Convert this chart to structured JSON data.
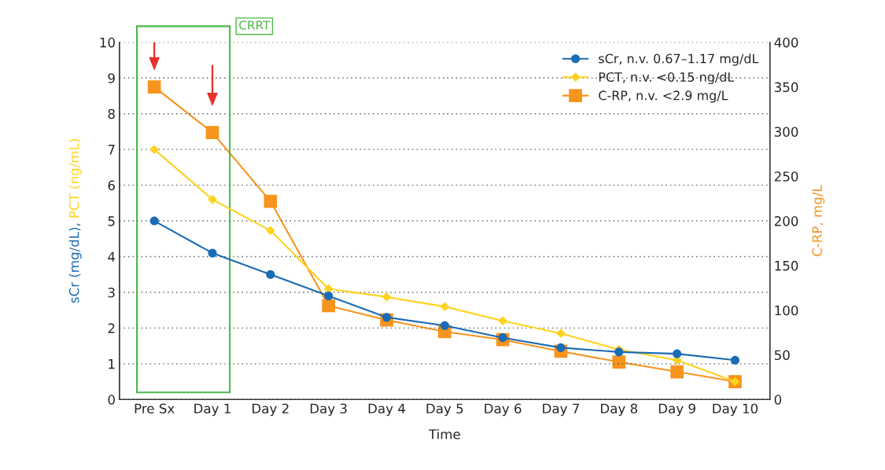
{
  "chart_data": {
    "type": "line",
    "xlabel": "Time",
    "ylabel": "sCr (mg/dL), PCT (ng/mL)",
    "y2label": "C-RP, mg/L",
    "categories": [
      "Pre Sx",
      "Day 1",
      "Day 2",
      "Day 3",
      "Day 4",
      "Day 5",
      "Day 6",
      "Day 7",
      "Day 8",
      "Day 9",
      "Day 10"
    ],
    "series": [
      {
        "name": "sCr, n.v. 0.67–1.17 mg/dL",
        "color": "#1b6cb4",
        "marker": "circle",
        "values": [
          5.0,
          4.1,
          3.5,
          2.9,
          2.3,
          2.07,
          1.73,
          1.45,
          1.33,
          1.28,
          1.1
        ]
      },
      {
        "name": "PCT, n.v. <0.15 ng/dL",
        "color": "#ffd21f",
        "marker": "diamond",
        "values": [
          7.0,
          5.6,
          4.73,
          3.1,
          2.87,
          2.6,
          2.2,
          1.85,
          1.4,
          1.1,
          0.5
        ]
      },
      {
        "name": "C-RP, n.v. <2.9 mg/L",
        "color": "#f7941d",
        "marker": "square",
        "axis": "y2",
        "values": [
          350,
          299,
          222,
          105,
          89,
          76,
          67,
          54,
          42,
          31,
          20
        ]
      }
    ],
    "ylim": [
      0,
      10
    ],
    "yticks": [
      0,
      1,
      2,
      3,
      4,
      5,
      6,
      7,
      8,
      9,
      10
    ],
    "y2lim": [
      0,
      400
    ],
    "y2ticks": [
      0,
      50,
      100,
      150,
      200,
      250,
      300,
      350,
      400
    ],
    "grid": "y",
    "legend": "top right",
    "annotations": [
      "CRRT"
    ]
  }
}
